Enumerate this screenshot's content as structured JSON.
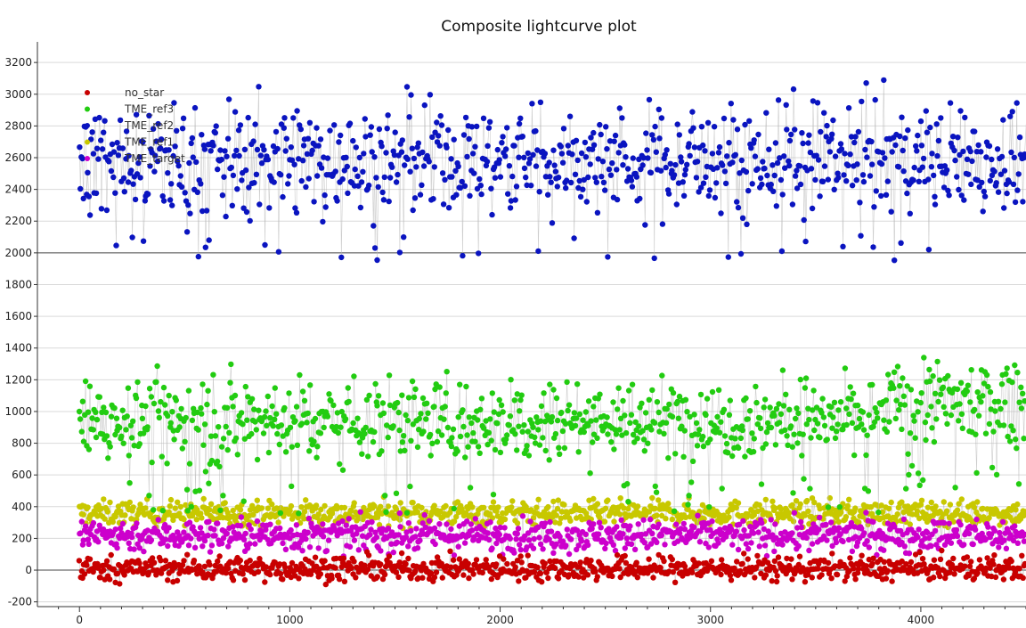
{
  "chart_data": {
    "type": "scatter",
    "title": "Composite lightcurve plot",
    "xlabel": "",
    "ylabel": "",
    "xlim": [
      -200,
      4500
    ],
    "ylim": [
      -230,
      3330
    ],
    "x_ticks": [
      0,
      1000,
      2000,
      3000,
      4000
    ],
    "y_ticks": [
      -200,
      0,
      200,
      400,
      600,
      800,
      1000,
      1200,
      1400,
      1600,
      1800,
      2000,
      2200,
      2400,
      2600,
      2800,
      3000,
      3200
    ],
    "x_tick_labels": [
      "0",
      "1000",
      "2000",
      "3000",
      "4000"
    ],
    "y_tick_labels": [
      "-200",
      "0",
      "200",
      "400",
      "600",
      "800",
      "1000",
      "1200",
      "1400",
      "1600",
      "1800",
      "2000",
      "2200",
      "2400",
      "2600",
      "2800",
      "3000",
      "3200"
    ],
    "grid": true,
    "legend_position": "top-left",
    "legend": [
      "no_star",
      "TME_ref3",
      "TME_ref2",
      "TME_ref1",
      "TME_target"
    ],
    "x_range": [
      0,
      4500
    ],
    "series": [
      {
        "name": "no_star",
        "color": "#c80000",
        "level": 10,
        "spread": 38,
        "values_sample": [
          20,
          -10,
          35,
          -25,
          50,
          5,
          -40,
          15,
          60,
          0
        ]
      },
      {
        "name": "TME_ref3",
        "color": "#22cc11",
        "level": 950,
        "spread": 130,
        "values_sample": [
          1000,
          850,
          1200,
          700,
          950,
          1100,
          800,
          1300,
          900,
          1050
        ]
      },
      {
        "name": "TME_ref2",
        "color": "#0a14c0",
        "level": 2580,
        "spread": 170,
        "values_sample": [
          2600,
          2400,
          2800,
          2200,
          2700,
          2500,
          3000,
          2300,
          2650,
          2550
        ]
      },
      {
        "name": "TME_ref1",
        "color": "#c8c800",
        "level": 360,
        "spread": 38,
        "values_sample": [
          350,
          380,
          320,
          400,
          360,
          300,
          420,
          340,
          370,
          390
        ]
      },
      {
        "name": "TME_target",
        "color": "#cc00cc",
        "level": 220,
        "spread": 50,
        "values_sample": [
          220,
          180,
          260,
          150,
          300,
          200,
          240,
          170,
          280,
          210
        ]
      }
    ]
  }
}
